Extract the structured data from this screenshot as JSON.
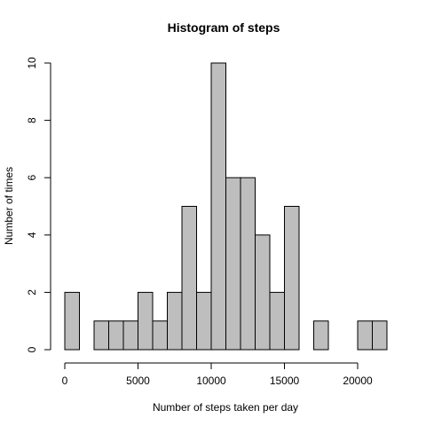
{
  "chart_data": {
    "type": "bar",
    "title": "Histogram of steps",
    "xlabel": "Number of steps taken per day",
    "ylabel": "Number of times",
    "bin_width": 1000,
    "bins": [
      {
        "start": 0,
        "end": 1000,
        "count": 2
      },
      {
        "start": 1000,
        "end": 2000,
        "count": 0
      },
      {
        "start": 2000,
        "end": 3000,
        "count": 1
      },
      {
        "start": 3000,
        "end": 4000,
        "count": 1
      },
      {
        "start": 4000,
        "end": 5000,
        "count": 1
      },
      {
        "start": 5000,
        "end": 6000,
        "count": 2
      },
      {
        "start": 6000,
        "end": 7000,
        "count": 1
      },
      {
        "start": 7000,
        "end": 8000,
        "count": 2
      },
      {
        "start": 8000,
        "end": 9000,
        "count": 5
      },
      {
        "start": 9000,
        "end": 10000,
        "count": 2
      },
      {
        "start": 10000,
        "end": 11000,
        "count": 10
      },
      {
        "start": 11000,
        "end": 12000,
        "count": 6
      },
      {
        "start": 12000,
        "end": 13000,
        "count": 6
      },
      {
        "start": 13000,
        "end": 14000,
        "count": 4
      },
      {
        "start": 14000,
        "end": 15000,
        "count": 2
      },
      {
        "start": 15000,
        "end": 16000,
        "count": 5
      },
      {
        "start": 16000,
        "end": 17000,
        "count": 0
      },
      {
        "start": 17000,
        "end": 18000,
        "count": 1
      },
      {
        "start": 18000,
        "end": 19000,
        "count": 0
      },
      {
        "start": 19000,
        "end": 20000,
        "count": 0
      },
      {
        "start": 20000,
        "end": 21000,
        "count": 1
      },
      {
        "start": 21000,
        "end": 22000,
        "count": 1
      }
    ],
    "xlim": [
      0,
      22000
    ],
    "ylim": [
      0,
      10
    ],
    "x_ticks": [
      0,
      5000,
      10000,
      15000,
      20000
    ],
    "y_ticks": [
      0,
      2,
      4,
      6,
      8,
      10
    ],
    "bar_color": "#bebebe",
    "edge_color": "#000000",
    "grid": false,
    "legend": "none"
  }
}
